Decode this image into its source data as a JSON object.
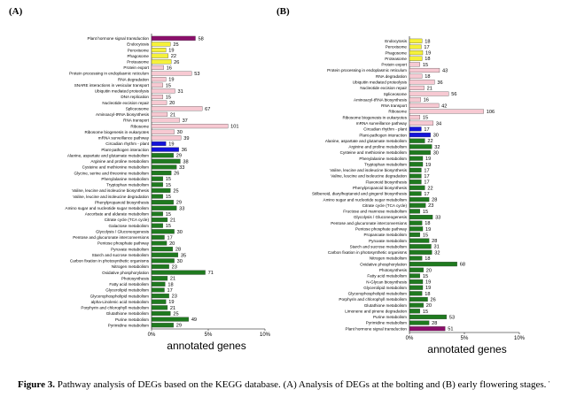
{
  "colors": {
    "signal": "#8b0f6b",
    "cellular": "#f5f13a",
    "genetic": "#f7c9d2",
    "environmental": "#1414d9",
    "metabolism": "#1f7a1f"
  },
  "caption": {
    "label": "Figure 3.",
    "text": " Pathway analysis of DEGs based on the KEGG database. (A) Analysis of DEGs at the bolting and (B) early flowering stages. The X-axis indicates the pathways, the Y-axis indicates the numbers of"
  },
  "chart_data": [
    {
      "type": "bar",
      "panel_label": "(A)",
      "xlabel": "annotated genes",
      "xticks": [
        "0%",
        "5%",
        "10%"
      ],
      "xlim": [
        0,
        10
      ],
      "categories": [
        "Plant hormone signal transduction",
        "Endocytosis",
        "Peroxisome",
        "Phagosome",
        "Proteasome",
        "Protein export",
        "Protein processing in endoplasmic reticulum",
        "RNA degradation",
        "SNARE interactions in vesicular transport",
        "Ubiquitin mediated proteolysis",
        "DNA replication",
        "Nucleotide excision repair",
        "Spliceosome",
        "Aminoacyl-tRNA biosynthesis",
        "RNA transport",
        "Ribosome",
        "Ribosome biogenesis in eukaryotes",
        "mRNA surveillance pathway",
        "Circadian rhythm - plant",
        "Plant-pathogen interaction",
        "Alanine, aspartate and glutamate metabolism",
        "Arginine and proline metabolism",
        "Cysteine and methionine metabolism",
        "Glycine, serine and threonine metabolism",
        "Phenylalanine metabolism",
        "Tryptophan metabolism",
        "Valine, leucine and isoleucine biosynthesis",
        "Valine, leucine and isoleucine degradation",
        "Phenylpropanoid biosynthesis",
        "Amino sugar and nucleotide sugar metabolism",
        "Ascorbate and aldarate metabolism",
        "Citrate cycle (TCA cycle)",
        "Galactose metabolism",
        "Glycolysis / Gluconeogenesis",
        "Pentose and glucuronate interconversions",
        "Pentose phosphate pathway",
        "Pyruvate metabolism",
        "Starch and sucrose metabolism",
        "Carbon fixation in photosynthetic organisms",
        "Nitrogen metabolism",
        "Oxidative phosphorylation",
        "Photosynthesis",
        "Fatty acid metabolism",
        "Glycerolipid metabolism",
        "Glycerophospholipid metabolism",
        "alpha-Linolenic acid metabolism",
        "Porphyrin and chlorophyll metabolism",
        "Glutathione metabolism",
        "Purine metabolism",
        "Pyrimidine metabolism"
      ],
      "values": [
        58,
        25,
        19,
        22,
        26,
        16,
        53,
        19,
        15,
        31,
        15,
        20,
        67,
        21,
        37,
        101,
        30,
        39,
        19,
        36,
        29,
        38,
        33,
        26,
        15,
        15,
        25,
        15,
        29,
        33,
        15,
        21,
        15,
        30,
        17,
        20,
        28,
        35,
        30,
        23,
        71,
        21,
        18,
        17,
        23,
        19,
        21,
        25,
        49,
        29
      ],
      "groups": [
        "signal",
        "cellular",
        "cellular",
        "cellular",
        "cellular",
        "genetic",
        "genetic",
        "genetic",
        "genetic",
        "genetic",
        "genetic",
        "genetic",
        "genetic",
        "genetic",
        "genetic",
        "genetic",
        "genetic",
        "genetic",
        "environmental",
        "environmental",
        "metabolism",
        "metabolism",
        "metabolism",
        "metabolism",
        "metabolism",
        "metabolism",
        "metabolism",
        "metabolism",
        "metabolism",
        "metabolism",
        "metabolism",
        "metabolism",
        "metabolism",
        "metabolism",
        "metabolism",
        "metabolism",
        "metabolism",
        "metabolism",
        "metabolism",
        "metabolism",
        "metabolism",
        "metabolism",
        "metabolism",
        "metabolism",
        "metabolism",
        "metabolism",
        "metabolism",
        "metabolism",
        "metabolism",
        "metabolism"
      ],
      "axis_percent_max": 10,
      "axis_value_max": 150
    },
    {
      "type": "bar",
      "panel_label": "(B)",
      "xlabel": "annotated genes",
      "xticks": [
        "0%",
        "5%",
        "10%"
      ],
      "xlim": [
        0,
        10
      ],
      "categories": [
        "Endocytosis",
        "Peroxisome",
        "Phagosome",
        "Proteasome",
        "Protein export",
        "Protein processing in endoplasmic reticulum",
        "RNA degradation",
        "Ubiquitin mediated proteolysis",
        "Nucleotide excision repair",
        "Spliceosome",
        "Aminoacyl-tRNA biosynthesis",
        "RNA transport",
        "Ribosome",
        "Ribosome biogenesis in eukaryotes",
        "mRNA surveillance pathway",
        "Circadian rhythm - plant",
        "Plant-pathogen interaction",
        "Alanine, aspartate and glutamate metabolism",
        "Arginine and proline metabolism",
        "Cysteine and methionine metabolism",
        "Phenylalanine metabolism",
        "Tryptophan metabolism",
        "Valine, leucine and isoleucine biosynthesis",
        "Valine, leucine and isoleucine degradation",
        "Flavonoid biosynthesis",
        "Phenylpropanoid biosynthesis",
        "Stilbenoid, diarylheptanoid and gingerol biosynthesis",
        "Amino sugar and nucleotide sugar metabolism",
        "Citrate cycle (TCA cycle)",
        "Fructose and mannose metabolism",
        "Glycolysis / Gluconeogenesis",
        "Pentose and glucuronate interconversions",
        "Pentose phosphate pathway",
        "Propanoate metabolism",
        "Pyruvate metabolism",
        "Starch and sucrose metabolism",
        "Carbon fixation in photosynthetic organisms",
        "Nitrogen metabolism",
        "Oxidative phosphorylation",
        "Photosynthesis",
        "Fatty acid metabolism",
        "N-Glycan biosynthesis",
        "Glycerolipid metabolism",
        "Glycerophospholipid metabolism",
        "Porphyrin and chlorophyll metabolism",
        "Glutathione metabolism",
        "Limonene and pinene degradation",
        "Purine metabolism",
        "Pyrimidine metabolism",
        "Plant hormone signal transduction"
      ],
      "values": [
        18,
        17,
        19,
        18,
        15,
        43,
        18,
        36,
        21,
        56,
        16,
        42,
        106,
        15,
        34,
        17,
        30,
        22,
        32,
        30,
        19,
        19,
        17,
        17,
        17,
        22,
        17,
        28,
        23,
        15,
        33,
        18,
        19,
        15,
        28,
        31,
        32,
        18,
        68,
        20,
        15,
        19,
        19,
        18,
        26,
        20,
        15,
        53,
        28,
        51
      ],
      "groups": [
        "cellular",
        "cellular",
        "cellular",
        "cellular",
        "genetic",
        "genetic",
        "genetic",
        "genetic",
        "genetic",
        "genetic",
        "genetic",
        "genetic",
        "genetic",
        "genetic",
        "genetic",
        "environmental",
        "environmental",
        "metabolism",
        "metabolism",
        "metabolism",
        "metabolism",
        "metabolism",
        "metabolism",
        "metabolism",
        "metabolism",
        "metabolism",
        "metabolism",
        "metabolism",
        "metabolism",
        "metabolism",
        "metabolism",
        "metabolism",
        "metabolism",
        "metabolism",
        "metabolism",
        "metabolism",
        "metabolism",
        "metabolism",
        "metabolism",
        "metabolism",
        "metabolism",
        "metabolism",
        "metabolism",
        "metabolism",
        "metabolism",
        "metabolism",
        "metabolism",
        "metabolism",
        "metabolism",
        "signal"
      ],
      "axis_percent_max": 10,
      "axis_value_max": 157
    }
  ]
}
